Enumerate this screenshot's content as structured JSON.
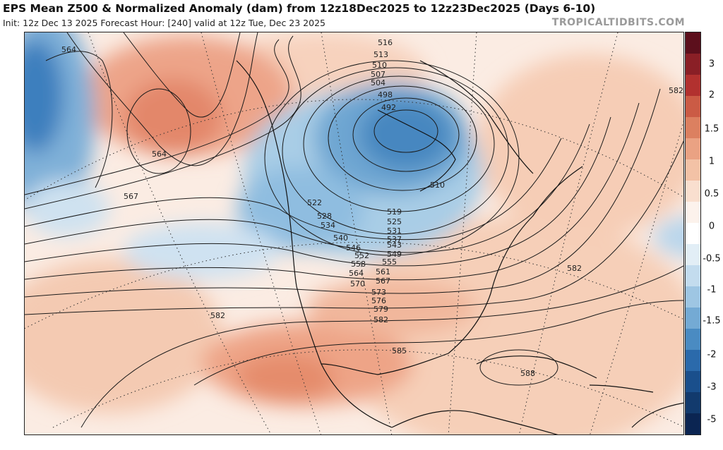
{
  "header": {
    "title": "EPS Mean Z500 & Normalized Anomaly (dam) from 12z18Dec2025 to 12z23Dec2025 (Days 6-10)",
    "subtitle": "Init: 12z Dec 13 2025   Forecast Hour: [240]   valid at 12z Tue, Dec 23 2025",
    "brand": "TROPICALTIDBITS.COM"
  },
  "colorbar": {
    "ticks": [
      "3",
      "2",
      "1.5",
      "1",
      "0.5",
      "0",
      "-0.5",
      "-1",
      "-1.5",
      "-2",
      "-3",
      "-5"
    ],
    "colors": [
      "#5c0f1c",
      "#8a1f26",
      "#b2312f",
      "#cb5b45",
      "#dc8060",
      "#eaa283",
      "#f3c2a6",
      "#f9dfcf",
      "#fcf2ec",
      "#ffffff",
      "#e2eef6",
      "#c3dcee",
      "#9ec6e3",
      "#74aad4",
      "#4a8bc2",
      "#2b6aab",
      "#1a4f8c",
      "#123a6d",
      "#0b2552"
    ]
  },
  "contour_labels": [
    "564",
    "564",
    "567",
    "582",
    "582",
    "585",
    "585",
    "588",
    "582",
    "516",
    "513",
    "510",
    "507",
    "504",
    "498",
    "492",
    "510",
    "519",
    "525",
    "531",
    "537",
    "543",
    "549",
    "555",
    "561",
    "567",
    "573",
    "576",
    "579",
    "582",
    "522",
    "528",
    "534",
    "540",
    "546",
    "552",
    "558",
    "564",
    "570"
  ],
  "map": {
    "field": "Z500 mean + normalized anomaly",
    "region": "North America and North Pacific"
  }
}
